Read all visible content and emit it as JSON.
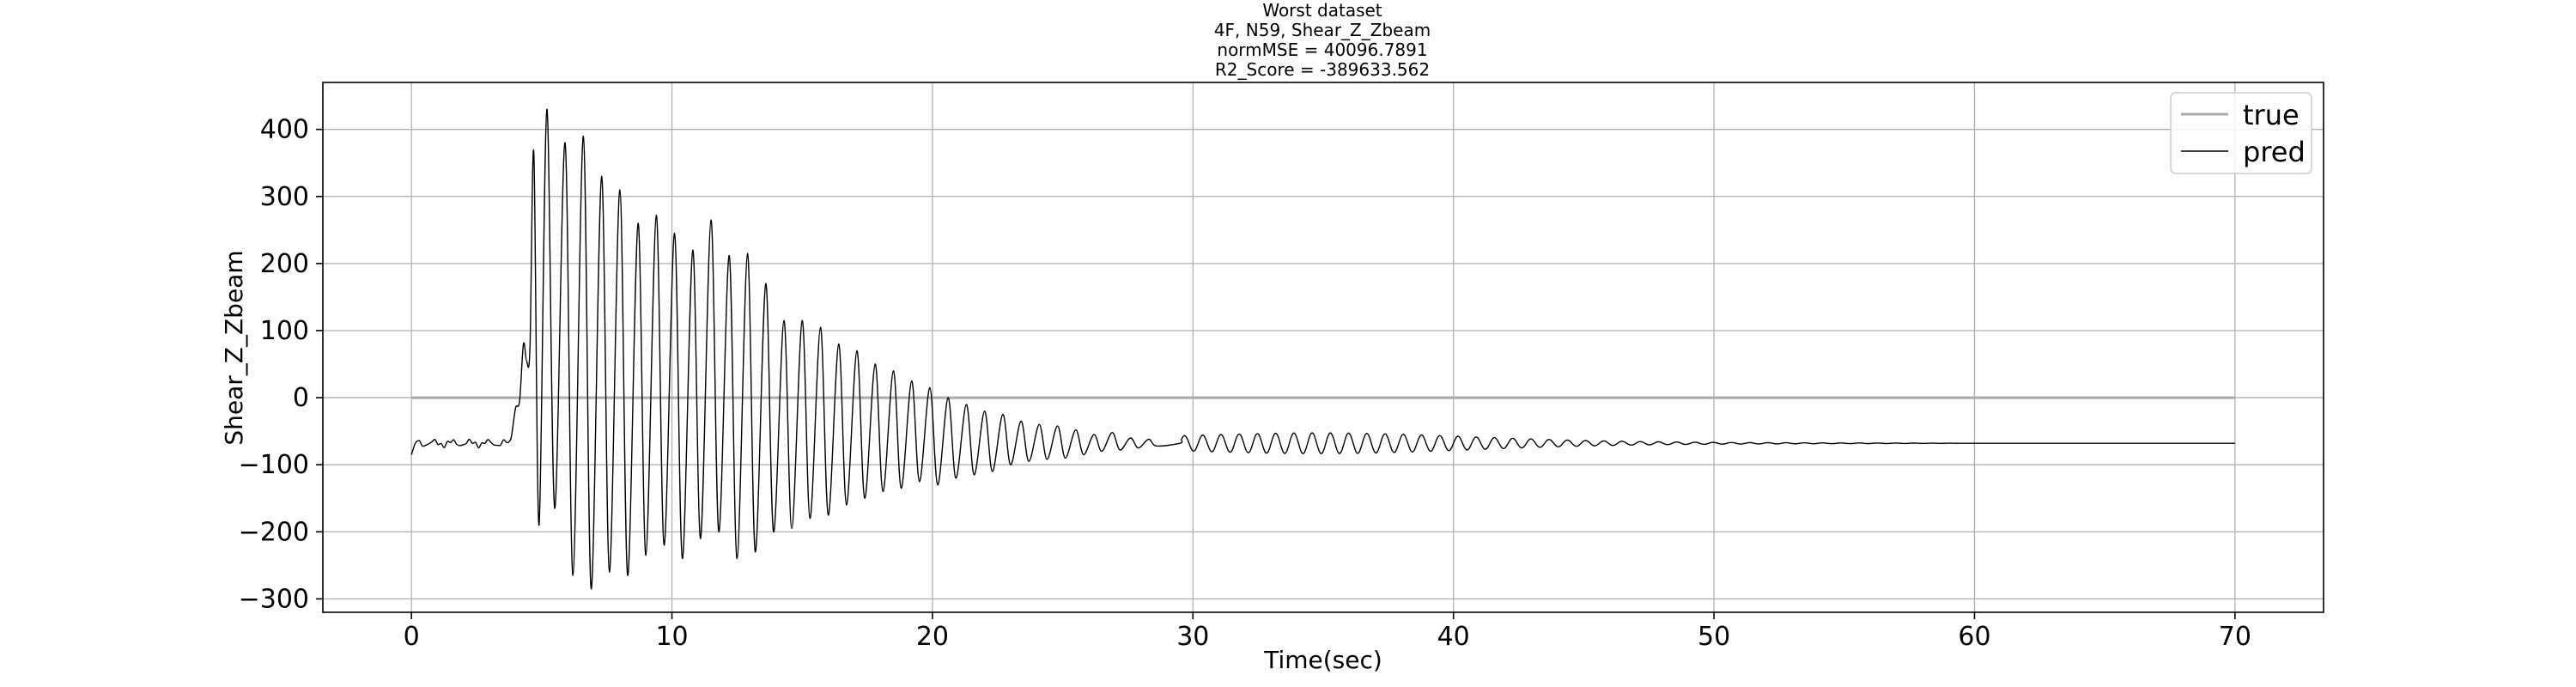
{
  "chart_data": {
    "type": "line",
    "title_lines": [
      "Worst dataset",
      "4F, N59, Shear_Z_Zbeam",
      "normMSE = 40096.7891",
      "R2_Score = -389633.562"
    ],
    "xlabel": "Time(sec)",
    "ylabel": "Shear_Z_Zbeam",
    "xlim": [
      -3.4,
      73.4
    ],
    "ylim": [
      -320,
      470
    ],
    "xticks": [
      0,
      10,
      20,
      30,
      40,
      50,
      60,
      70
    ],
    "yticks": [
      -300,
      -200,
      -100,
      0,
      100,
      200,
      300,
      400
    ],
    "ytick_labels": [
      "−300",
      "−200",
      "−100",
      "0",
      "100",
      "200",
      "300",
      "400"
    ],
    "grid": true,
    "legend_position": "top-right",
    "series": [
      {
        "name": "true",
        "color": "#a9a9a9",
        "x": [
          0,
          70
        ],
        "y": [
          0,
          0
        ]
      },
      {
        "name": "pred",
        "color": "#000000",
        "baseline": -68,
        "start_value": -85,
        "t_end": 70,
        "peaks": [
          [
            4.7,
            365
          ],
          [
            5.2,
            430
          ],
          [
            5.9,
            380
          ],
          [
            6.6,
            390
          ],
          [
            7.3,
            330
          ],
          [
            8.0,
            310
          ],
          [
            8.7,
            260
          ],
          [
            9.4,
            272
          ],
          [
            10.1,
            245
          ],
          [
            10.8,
            220
          ],
          [
            11.5,
            265
          ],
          [
            12.2,
            212
          ],
          [
            12.9,
            215
          ],
          [
            13.6,
            170
          ],
          [
            14.3,
            115
          ],
          [
            15.0,
            115
          ],
          [
            15.7,
            105
          ],
          [
            16.4,
            80
          ],
          [
            17.1,
            70
          ],
          [
            17.8,
            50
          ],
          [
            18.5,
            40
          ],
          [
            19.2,
            25
          ],
          [
            19.9,
            15
          ],
          [
            20.6,
            0
          ],
          [
            21.3,
            -10
          ],
          [
            22.0,
            -20
          ],
          [
            22.7,
            -25
          ],
          [
            23.4,
            -35
          ],
          [
            24.1,
            -40
          ],
          [
            24.8,
            -42
          ],
          [
            25.5,
            -48
          ],
          [
            26.2,
            -55
          ],
          [
            26.9,
            -52
          ],
          [
            27.6,
            -60
          ],
          [
            28.3,
            -62
          ]
        ],
        "troughs": [
          [
            4.9,
            -190
          ],
          [
            5.5,
            -165
          ],
          [
            6.2,
            -265
          ],
          [
            6.9,
            -285
          ],
          [
            7.6,
            -260
          ],
          [
            8.3,
            -265
          ],
          [
            9.0,
            -235
          ],
          [
            9.7,
            -220
          ],
          [
            10.4,
            -240
          ],
          [
            11.1,
            -210
          ],
          [
            11.8,
            -200
          ],
          [
            12.5,
            -240
          ],
          [
            13.2,
            -230
          ],
          [
            13.9,
            -200
          ],
          [
            14.6,
            -195
          ],
          [
            15.3,
            -180
          ],
          [
            16.0,
            -175
          ],
          [
            16.7,
            -160
          ],
          [
            17.4,
            -150
          ],
          [
            18.1,
            -140
          ],
          [
            18.8,
            -135
          ],
          [
            19.5,
            -125
          ],
          [
            20.2,
            -130
          ],
          [
            20.9,
            -120
          ],
          [
            21.6,
            -115
          ],
          [
            22.3,
            -110
          ],
          [
            23.0,
            -100
          ],
          [
            23.7,
            -95
          ],
          [
            24.4,
            -92
          ],
          [
            25.1,
            -90
          ],
          [
            25.8,
            -85
          ],
          [
            26.5,
            -80
          ],
          [
            27.2,
            -78
          ],
          [
            27.9,
            -75
          ],
          [
            28.6,
            -72
          ]
        ],
        "low_oscillation": {
          "t_start": 29.5,
          "t_end": 60,
          "period": 0.7,
          "amplitude_peak": 13,
          "center_time": 35
        }
      }
    ]
  }
}
